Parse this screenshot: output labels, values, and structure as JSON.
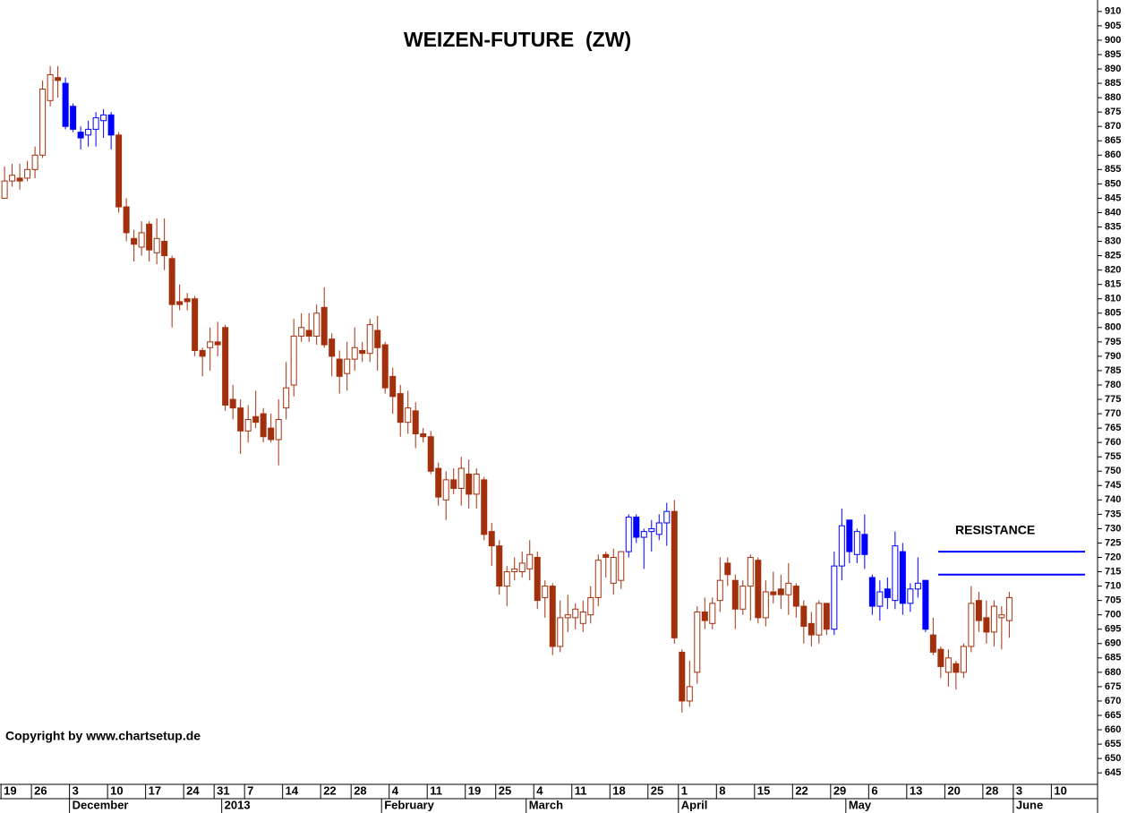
{
  "chart_data": {
    "type": "candlestick",
    "title": "WEIZEN-FUTURE  (ZW)",
    "annotation": "RESISTANCE",
    "copyright": "Copyright by www.chartsetup.de",
    "resistance_levels": [
      722,
      714
    ],
    "resistance_color": "#0000ff",
    "up_fill": "#ffffff",
    "open": [
      845,
      851,
      852,
      852,
      855,
      860,
      879,
      887,
      885,
      877,
      868,
      867,
      869,
      872,
      874,
      867,
      842,
      831,
      828,
      836,
      826,
      830,
      824,
      809,
      810,
      810,
      792,
      793,
      795,
      800,
      775,
      772,
      764,
      769,
      770,
      765,
      761,
      772,
      780,
      797,
      799,
      797,
      807,
      796,
      789,
      784,
      789,
      792,
      791,
      799,
      794,
      783,
      777,
      767,
      771,
      763,
      762,
      751,
      740,
      747,
      744,
      749,
      742,
      747,
      729,
      724,
      710,
      715,
      715,
      716,
      720,
      706,
      710,
      689,
      699,
      699,
      697,
      700,
      706,
      721,
      711,
      712,
      722,
      734,
      727,
      729,
      728,
      732,
      736,
      687,
      670,
      680,
      701,
      697,
      705,
      718,
      712,
      702,
      710,
      719,
      699,
      708,
      709,
      707,
      710,
      703,
      697,
      693,
      704,
      695,
      717,
      733,
      721,
      728,
      713,
      703,
      709,
      705,
      722,
      704,
      709,
      712,
      693,
      688,
      680,
      683,
      680,
      689,
      705,
      699,
      694,
      699,
      698
    ],
    "high": [
      856,
      857,
      857,
      858,
      863,
      886,
      891,
      891,
      887,
      878,
      870,
      872,
      875,
      876,
      875,
      868,
      845,
      834,
      837,
      837,
      838,
      838,
      825,
      815,
      812,
      811,
      793,
      800,
      802,
      801,
      780,
      775,
      773,
      778,
      772,
      770,
      775,
      788,
      803,
      805,
      805,
      808,
      814,
      798,
      792,
      795,
      800,
      795,
      803,
      804,
      795,
      786,
      780,
      778,
      774,
      765,
      764,
      753,
      750,
      751,
      755,
      754,
      751,
      748,
      732,
      726,
      717,
      720,
      722,
      726,
      722,
      712,
      711,
      705,
      707,
      704,
      705,
      710,
      721,
      722,
      723,
      722,
      735,
      735,
      730,
      733,
      735,
      739,
      740,
      688,
      684,
      703,
      706,
      706,
      720,
      720,
      714,
      712,
      721,
      720,
      712,
      715,
      714,
      718,
      711,
      705,
      701,
      705,
      704,
      722,
      737,
      733,
      730,
      735,
      714,
      712,
      713,
      729,
      725,
      711,
      720,
      712,
      699,
      689,
      688,
      684,
      690,
      710,
      708,
      705,
      705,
      703,
      708
    ],
    "low": [
      845,
      849,
      848,
      851,
      852,
      859,
      877,
      880,
      869,
      868,
      862,
      863,
      863,
      866,
      862,
      840,
      830,
      823,
      825,
      823,
      822,
      820,
      800,
      806,
      806,
      790,
      783,
      785,
      790,
      771,
      768,
      756,
      760,
      765,
      760,
      760,
      752,
      768,
      776,
      795,
      795,
      794,
      793,
      783,
      777,
      778,
      785,
      788,
      788,
      785,
      777,
      770,
      762,
      763,
      758,
      760,
      749,
      738,
      733,
      742,
      738,
      737,
      737,
      726,
      717,
      707,
      703,
      712,
      713,
      712,
      702,
      699,
      686,
      687,
      694,
      695,
      694,
      697,
      703,
      713,
      707,
      709,
      720,
      725,
      716,
      722,
      726,
      724,
      690,
      666,
      668,
      676,
      695,
      695,
      701,
      710,
      695,
      700,
      698,
      697,
      696,
      704,
      702,
      700,
      699,
      690,
      689,
      690,
      693,
      693,
      712,
      718,
      718,
      716,
      700,
      698,
      702,
      702,
      700,
      701,
      706,
      694,
      686,
      678,
      675,
      674,
      678,
      687,
      694,
      690,
      689,
      688,
      692
    ],
    "close": [
      851,
      853,
      851,
      855,
      860,
      883,
      888,
      886,
      870,
      869,
      866,
      869,
      873,
      874,
      867,
      842,
      833,
      829,
      833,
      827,
      831,
      825,
      808,
      808,
      809,
      792,
      790,
      795,
      794,
      773,
      772,
      764,
      768,
      767,
      762,
      761,
      768,
      779,
      797,
      800,
      797,
      805,
      794,
      790,
      783,
      789,
      793,
      791,
      801,
      793,
      779,
      776,
      767,
      772,
      763,
      762,
      750,
      741,
      747,
      744,
      751,
      742,
      749,
      728,
      724,
      710,
      715,
      716,
      718,
      721,
      705,
      710,
      689,
      699,
      700,
      702,
      701,
      706,
      719,
      720,
      720,
      722,
      734,
      727,
      729,
      730,
      732,
      736,
      692,
      670,
      675,
      701,
      698,
      704,
      712,
      714,
      702,
      710,
      720,
      699,
      708,
      707,
      707,
      711,
      703,
      696,
      693,
      704,
      695,
      717,
      731,
      722,
      729,
      721,
      703,
      708,
      706,
      724,
      704,
      709,
      711,
      695,
      687,
      682,
      685,
      680,
      689,
      704,
      698,
      694,
      703,
      700,
      706
    ],
    "colors": [
      "#a3300c",
      "#a3300c",
      "#a3300c",
      "#a3300c",
      "#a3300c",
      "#a3300c",
      "#a3300c",
      "#a3300c",
      "#0000ff",
      "#0000ff",
      "#0000ff",
      "#0000ff",
      "#0000ff",
      "#0000ff",
      "#0000ff",
      "#a3300c",
      "#a3300c",
      "#a3300c",
      "#a3300c",
      "#a3300c",
      "#a3300c",
      "#a3300c",
      "#a3300c",
      "#a3300c",
      "#a3300c",
      "#a3300c",
      "#a3300c",
      "#a3300c",
      "#a3300c",
      "#a3300c",
      "#a3300c",
      "#a3300c",
      "#a3300c",
      "#a3300c",
      "#a3300c",
      "#a3300c",
      "#a3300c",
      "#a3300c",
      "#a3300c",
      "#a3300c",
      "#a3300c",
      "#a3300c",
      "#a3300c",
      "#a3300c",
      "#a3300c",
      "#a3300c",
      "#a3300c",
      "#a3300c",
      "#a3300c",
      "#a3300c",
      "#a3300c",
      "#a3300c",
      "#a3300c",
      "#a3300c",
      "#a3300c",
      "#a3300c",
      "#a3300c",
      "#a3300c",
      "#a3300c",
      "#a3300c",
      "#a3300c",
      "#a3300c",
      "#a3300c",
      "#a3300c",
      "#a3300c",
      "#a3300c",
      "#a3300c",
      "#a3300c",
      "#a3300c",
      "#a3300c",
      "#a3300c",
      "#a3300c",
      "#a3300c",
      "#a3300c",
      "#a3300c",
      "#a3300c",
      "#a3300c",
      "#a3300c",
      "#a3300c",
      "#a3300c",
      "#a3300c",
      "#a3300c",
      "#0000ff",
      "#0000ff",
      "#0000ff",
      "#0000ff",
      "#0000ff",
      "#0000ff",
      "#a3300c",
      "#a3300c",
      "#a3300c",
      "#a3300c",
      "#a3300c",
      "#a3300c",
      "#a3300c",
      "#a3300c",
      "#a3300c",
      "#a3300c",
      "#a3300c",
      "#a3300c",
      "#a3300c",
      "#a3300c",
      "#a3300c",
      "#a3300c",
      "#a3300c",
      "#a3300c",
      "#a3300c",
      "#a3300c",
      "#a3300c",
      "#0000ff",
      "#0000ff",
      "#0000ff",
      "#0000ff",
      "#0000ff",
      "#0000ff",
      "#0000ff",
      "#0000ff",
      "#0000ff",
      "#0000ff",
      "#0000ff",
      "#0000ff",
      "#0000ff",
      "#a3300c",
      "#a3300c",
      "#a3300c",
      "#a3300c",
      "#a3300c",
      "#a3300c",
      "#a3300c",
      "#a3300c",
      "#a3300c",
      "#a3300c",
      "#a3300c"
    ],
    "xlim": [
      -0.6,
      143.6
    ],
    "xticks": [
      {
        "value": 0,
        "label": "19"
      },
      {
        "value": 4,
        "label": "26"
      },
      {
        "value": 9,
        "label": "3"
      },
      {
        "value": 14,
        "label": "10"
      },
      {
        "value": 19,
        "label": "17"
      },
      {
        "value": 24,
        "label": "24"
      },
      {
        "value": 28,
        "label": "31"
      },
      {
        "value": 32,
        "label": "7"
      },
      {
        "value": 37,
        "label": "14"
      },
      {
        "value": 42,
        "label": "22"
      },
      {
        "value": 46,
        "label": "28"
      },
      {
        "value": 51,
        "label": "4"
      },
      {
        "value": 56,
        "label": "11"
      },
      {
        "value": 61,
        "label": "19"
      },
      {
        "value": 65,
        "label": "25"
      },
      {
        "value": 70,
        "label": "4"
      },
      {
        "value": 75,
        "label": "11"
      },
      {
        "value": 80,
        "label": "18"
      },
      {
        "value": 85,
        "label": "25"
      },
      {
        "value": 89,
        "label": "1"
      },
      {
        "value": 94,
        "label": "8"
      },
      {
        "value": 99,
        "label": "15"
      },
      {
        "value": 104,
        "label": "22"
      },
      {
        "value": 109,
        "label": "29"
      },
      {
        "value": 114,
        "label": "6"
      },
      {
        "value": 119,
        "label": "13"
      },
      {
        "value": 124,
        "label": "20"
      },
      {
        "value": 129,
        "label": "28"
      },
      {
        "value": 133,
        "label": "3"
      },
      {
        "value": 138,
        "label": "10"
      }
    ],
    "month_ticks": [
      {
        "value": 9,
        "label": "December"
      },
      {
        "value": 29,
        "label": "2013"
      },
      {
        "value": 50,
        "label": "February"
      },
      {
        "value": 69,
        "label": "March"
      },
      {
        "value": 89,
        "label": "April"
      },
      {
        "value": 111,
        "label": "May"
      },
      {
        "value": 133,
        "label": "June"
      }
    ],
    "ylim": [
      641,
      914
    ],
    "yticks": [
      645,
      650,
      655,
      660,
      665,
      670,
      675,
      680,
      685,
      690,
      695,
      700,
      705,
      710,
      715,
      720,
      725,
      730,
      735,
      740,
      745,
      750,
      755,
      760,
      765,
      770,
      775,
      780,
      785,
      790,
      795,
      800,
      805,
      810,
      815,
      820,
      825,
      830,
      835,
      840,
      845,
      850,
      855,
      860,
      865,
      870,
      875,
      880,
      885,
      890,
      895,
      900,
      905,
      910
    ]
  }
}
